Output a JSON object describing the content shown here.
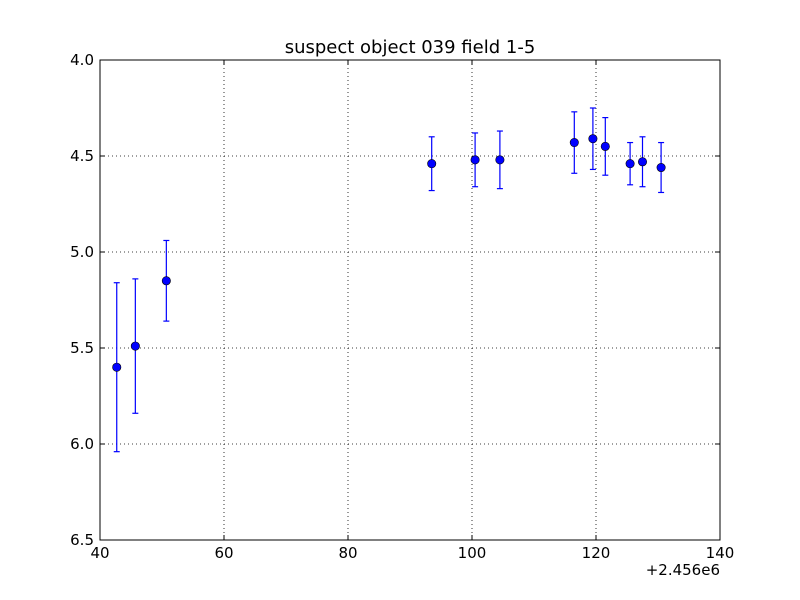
{
  "chart_data": {
    "type": "scatter",
    "title": "suspect object 039 field 1-5",
    "xlabel": "",
    "ylabel": "",
    "x_offset_label": "+2.456e6",
    "xlim": [
      40,
      140
    ],
    "ylim": [
      6.5,
      4.0
    ],
    "y_inverted": true,
    "x_ticks": [
      "40",
      "60",
      "80",
      "100",
      "120",
      "140"
    ],
    "y_ticks": [
      "4.0",
      "4.5",
      "5.0",
      "5.5",
      "6.0",
      "6.5"
    ],
    "grid": true,
    "marker_color": "#0000ff",
    "points": [
      {
        "x": 42.7,
        "y": 5.6,
        "yerr": 0.44
      },
      {
        "x": 45.7,
        "y": 5.49,
        "yerr": 0.35
      },
      {
        "x": 50.7,
        "y": 5.15,
        "yerr": 0.21
      },
      {
        "x": 93.5,
        "y": 4.54,
        "yerr": 0.14
      },
      {
        "x": 100.5,
        "y": 4.52,
        "yerr": 0.14
      },
      {
        "x": 104.5,
        "y": 4.52,
        "yerr": 0.15
      },
      {
        "x": 116.5,
        "y": 4.43,
        "yerr": 0.16
      },
      {
        "x": 119.5,
        "y": 4.41,
        "yerr": 0.16
      },
      {
        "x": 121.5,
        "y": 4.45,
        "yerr": 0.15
      },
      {
        "x": 125.5,
        "y": 4.54,
        "yerr": 0.11
      },
      {
        "x": 127.5,
        "y": 4.53,
        "yerr": 0.13
      },
      {
        "x": 130.5,
        "y": 4.56,
        "yerr": 0.13
      }
    ]
  }
}
